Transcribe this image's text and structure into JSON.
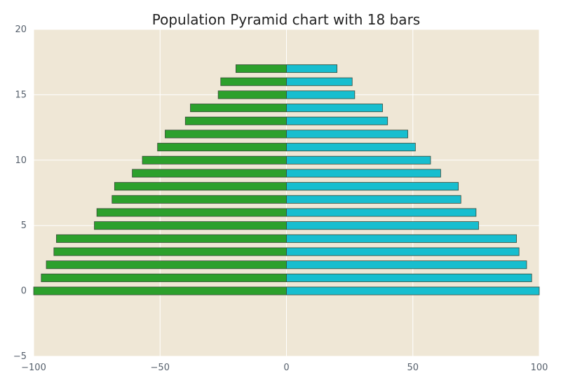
{
  "chart_data": {
    "type": "bar",
    "orientation": "horizontal",
    "title": "Population Pyramid chart with 18 bars",
    "xlabel": "",
    "ylabel": "",
    "xlim": [
      -100,
      100
    ],
    "ylim": [
      -5,
      20
    ],
    "xticks": [
      "−100",
      "−50",
      "0",
      "50",
      "100"
    ],
    "yticks": [
      "−5",
      "0",
      "5",
      "10",
      "15",
      "20"
    ],
    "grid": true,
    "background": "#efe7d6",
    "series": [
      {
        "color": "#2ca02c",
        "values": [
          -100,
          -97,
          -95,
          -92,
          -91,
          -76,
          -75,
          -69,
          -68,
          -61,
          -57,
          -51,
          -48,
          -40,
          -38,
          -27,
          -26,
          -20
        ]
      },
      {
        "color": "#17becf",
        "values": [
          100,
          97,
          95,
          92,
          91,
          76,
          75,
          69,
          68,
          61,
          57,
          51,
          48,
          40,
          38,
          27,
          26,
          20
        ]
      }
    ],
    "positions": [
      0,
      1,
      2,
      3,
      4,
      5,
      6,
      7,
      8,
      9,
      10,
      11,
      12,
      13,
      14,
      15,
      16,
      17
    ]
  }
}
